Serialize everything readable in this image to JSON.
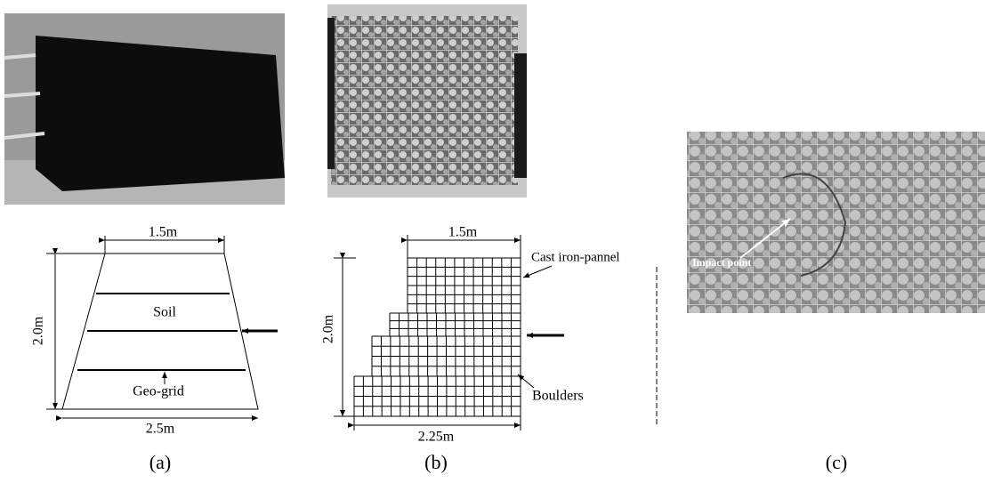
{
  "panels": [
    {
      "caption": "(a)",
      "top_width": "1.5m",
      "height": "2.0m",
      "bottom_width": "2.5m",
      "layer_label": "Soil",
      "grid_label": "Geo-grid"
    },
    {
      "caption": "(b)",
      "top_width": "1.5m",
      "height": "2.0m",
      "bottom_width": "2.25m",
      "panel_label": "Cast iron-pannel",
      "fill_label": "Boulders"
    },
    {
      "caption": "(c)",
      "photo_label": "Impact point"
    }
  ]
}
